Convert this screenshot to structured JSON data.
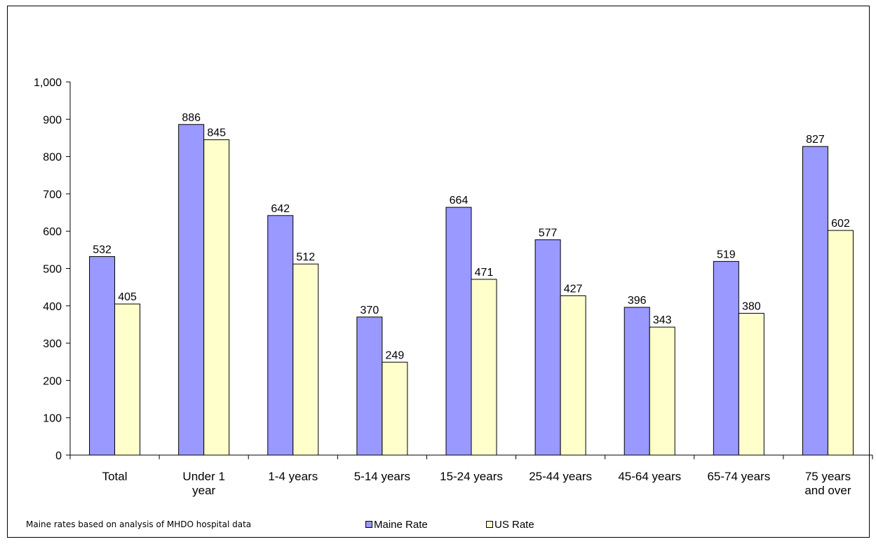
{
  "chart_data": {
    "type": "bar",
    "categories": [
      "Total",
      "Under 1 year",
      "1-4 years",
      "5-14 years",
      "15-24 years",
      "25-44 years",
      "45-64 years",
      "65-74 years",
      "75 years and over"
    ],
    "category_lines": [
      [
        "Total"
      ],
      [
        "Under 1",
        "year"
      ],
      [
        "1-4 years"
      ],
      [
        "5-14 years"
      ],
      [
        "15-24 years"
      ],
      [
        "25-44 years"
      ],
      [
        "45-64 years"
      ],
      [
        "65-74 years"
      ],
      [
        "75 years",
        "and over"
      ]
    ],
    "series": [
      {
        "name": "Maine Rate",
        "values": [
          532,
          886,
          642,
          370,
          664,
          577,
          396,
          519,
          827
        ],
        "labels": [
          "532",
          "886",
          "642",
          "370",
          "664",
          "577",
          "396",
          "519",
          "827"
        ],
        "color": "#9999ff"
      },
      {
        "name": "US Rate",
        "values": [
          405,
          845,
          512,
          249,
          471,
          427,
          343,
          380,
          602
        ],
        "labels": [
          "405",
          "845",
          "512",
          "249",
          "471",
          "427",
          "343",
          "380",
          "602"
        ],
        "color": "#ffffcc"
      }
    ],
    "ylim": [
      0,
      1000
    ],
    "yticks": [
      0,
      100,
      200,
      300,
      400,
      500,
      600,
      700,
      800,
      900,
      1000
    ],
    "ytick_labels": [
      "0",
      "100",
      "200",
      "300",
      "400",
      "500",
      "600",
      "700",
      "800",
      "900",
      "1,000"
    ],
    "title": "",
    "xlabel": "",
    "ylabel": "",
    "grid": false,
    "legend": "bottom",
    "note": "Maine rates based on analysis  of MHDO hospital data"
  }
}
